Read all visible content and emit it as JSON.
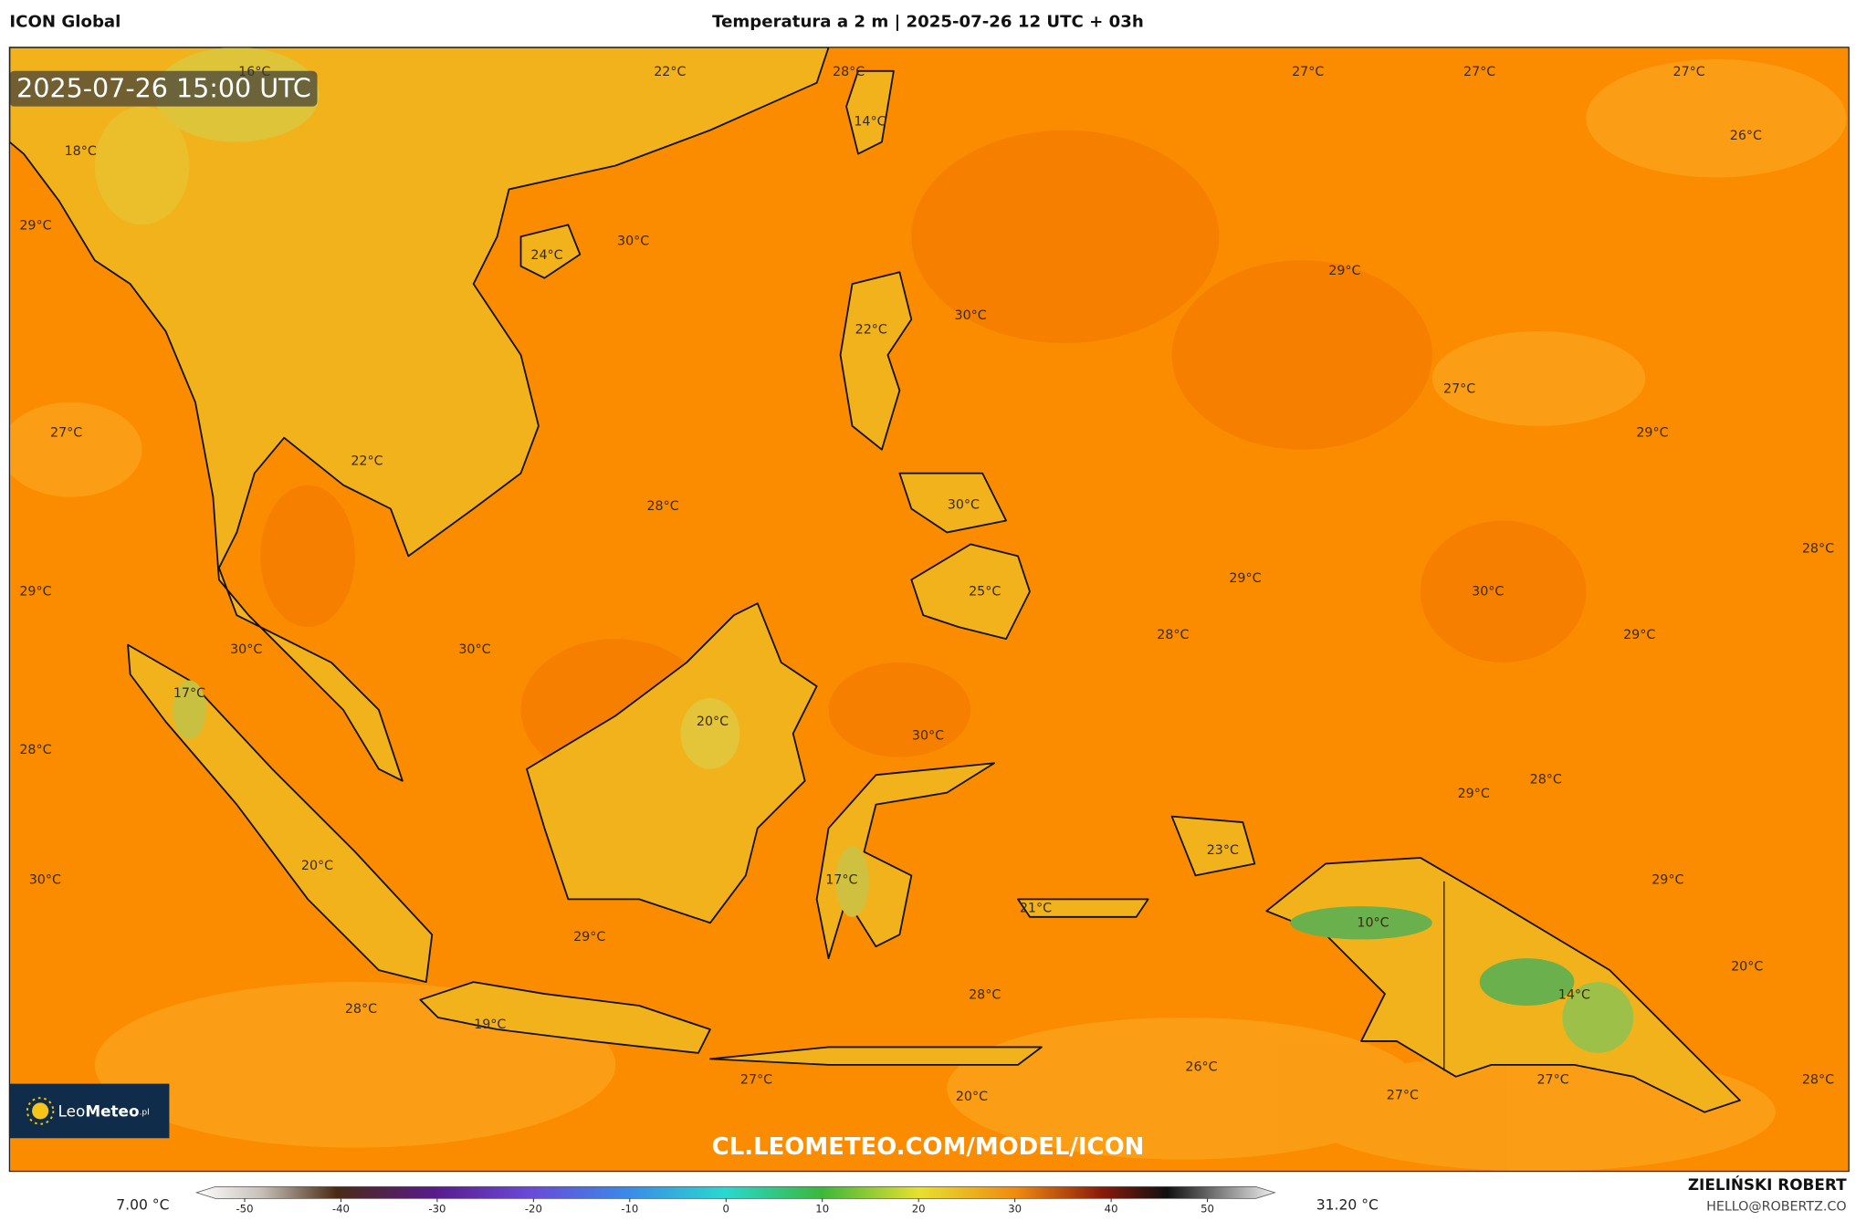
{
  "header": {
    "model": "ICON Global",
    "title": "Temperatura a 2 m | 2025-07-26 12 UTC + 03h"
  },
  "map": {
    "timestamp": "2025-07-26 15:00 UTC",
    "labels": [
      "22°C",
      "28°C",
      "27°C",
      "27°C",
      "27°C",
      "16°C",
      "14°C",
      "26°C",
      "18°C",
      "29°C",
      "24°C",
      "30°C",
      "29°C",
      "22°C",
      "30°C",
      "27°C",
      "27°C",
      "22°C",
      "29°C",
      "28°C",
      "30°C",
      "28°C",
      "29°C",
      "25°C",
      "29°C",
      "30°C",
      "30°C",
      "30°C",
      "28°C",
      "29°C",
      "17°C",
      "20°C",
      "30°C",
      "28°C",
      "29°C",
      "28°C",
      "23°C",
      "30°C",
      "20°C",
      "17°C",
      "29°C",
      "21°C",
      "10°C",
      "29°C",
      "20°C",
      "28°C",
      "14°C",
      "28°C",
      "19°C",
      "26°C",
      "27°C",
      "27°C",
      "28°C",
      "27°C",
      "20°C"
    ],
    "logo": {
      "leo": "Leo",
      "meteo": "Meteo",
      "suffix": ".pl"
    },
    "watermark": "CL.LEOMETEO.COM/MODEL/ICON"
  },
  "colorbar": {
    "min_label": "7.00 °C",
    "max_label": "31.20 °C",
    "range": [
      -55,
      57
    ],
    "ticks": [
      -50,
      -40,
      -30,
      -20,
      -10,
      0,
      10,
      20,
      30,
      40,
      50
    ]
  },
  "footer": {
    "author": "ZIELIŃSKI ROBERT",
    "email": "HELLO@ROBERTZ.CO"
  }
}
